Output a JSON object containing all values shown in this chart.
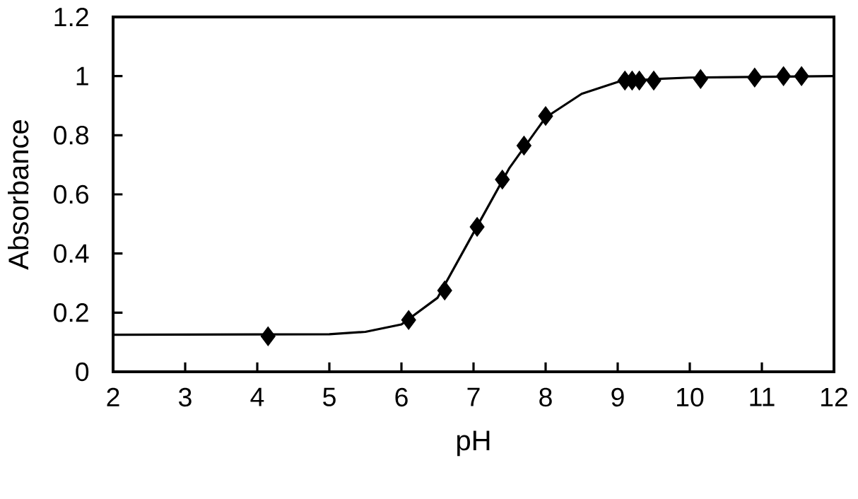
{
  "chart_data": {
    "type": "scatter",
    "xlabel": "pH",
    "ylabel": "Absorbance",
    "xlim": [
      2,
      12
    ],
    "ylim": [
      0,
      1.2
    ],
    "xticks": [
      2,
      3,
      4,
      5,
      6,
      7,
      8,
      9,
      10,
      11,
      12
    ],
    "yticks": [
      0,
      0.2,
      0.4,
      0.6,
      0.8,
      1,
      1.2
    ],
    "grid": false,
    "series": [
      {
        "color": "#000000",
        "marker": "diamond",
        "x": [
          4.15,
          6.1,
          6.6,
          7.05,
          7.4,
          7.7,
          8.0,
          9.1,
          9.2,
          9.3,
          9.5,
          10.15,
          10.9,
          11.3,
          11.55
        ],
        "values": [
          0.12,
          0.175,
          0.275,
          0.49,
          0.65,
          0.765,
          0.865,
          0.985,
          0.985,
          0.985,
          0.985,
          0.99,
          0.995,
          1.0,
          1.0
        ]
      },
      {
        "type": "line",
        "color": "#000000",
        "marker": "none",
        "line_style": "solid",
        "x": [
          2,
          5,
          5.5,
          6,
          6.5,
          7,
          7.5,
          8,
          8.5,
          9,
          9.5,
          10,
          12
        ],
        "values": [
          0.125,
          0.127,
          0.135,
          0.16,
          0.25,
          0.47,
          0.69,
          0.86,
          0.94,
          0.98,
          0.99,
          0.995,
          1.0
        ]
      }
    ]
  }
}
